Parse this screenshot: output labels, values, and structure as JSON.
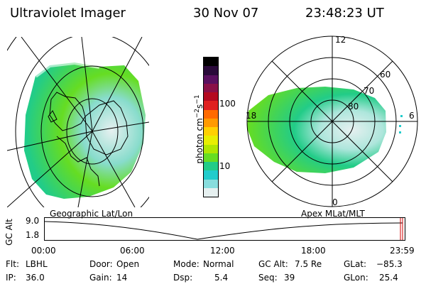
{
  "header": {
    "title": "Ultraviolet Imager",
    "date": "30 Nov 07",
    "time": "23:48:23 UT"
  },
  "colorbar": {
    "unit": "photon cm",
    "unit_exp1": "−2",
    "unit_s": "s",
    "unit_exp2": "−1",
    "ticks": [
      "100",
      "10"
    ],
    "colors": [
      "#000000",
      "#2a0a3a",
      "#5a1060",
      "#8a1048",
      "#b40a20",
      "#e02020",
      "#ff6a00",
      "#ff9a00",
      "#ffd000",
      "#e8ee00",
      "#b0e600",
      "#66dd22",
      "#22cc88",
      "#22cccc",
      "#88dddd",
      "#e6f0f0"
    ]
  },
  "panels": {
    "left_caption": "Geographic Lat/Lon",
    "right_caption": "Apex MLat/MLT",
    "right_labels": {
      "mlt_12": "12",
      "mlt_18": "18",
      "mlt_6": "6",
      "mlt_0": "0",
      "lat_60": "60",
      "lat_70": "70",
      "lat_80": "80"
    }
  },
  "altitude_plot": {
    "ylabel": "GC Alt",
    "yticks": [
      "9.0",
      "1.8"
    ],
    "xticks": [
      "00:00",
      "06:00",
      "12:00",
      "18:00",
      "23:59"
    ]
  },
  "status": {
    "flt_label": "Flt:",
    "flt_value": "LBHL",
    "door_label": "Door:",
    "door_value": "Open",
    "mode_label": "Mode:",
    "mode_value": "Normal",
    "gcalt_label": "GC Alt:",
    "gcalt_value": "7.5 Re",
    "glat_label": "GLat:",
    "glat_value": "−85.3",
    "ip_label": "IP:",
    "ip_value": "36.0",
    "gain_label": "Gain:",
    "gain_value": "14",
    "dsp_label": "Dsp:",
    "dsp_value": "5.4",
    "seq_label": "Seq:",
    "seq_value": "39",
    "glon_label": "GLon:",
    "glon_value": "25.4"
  }
}
